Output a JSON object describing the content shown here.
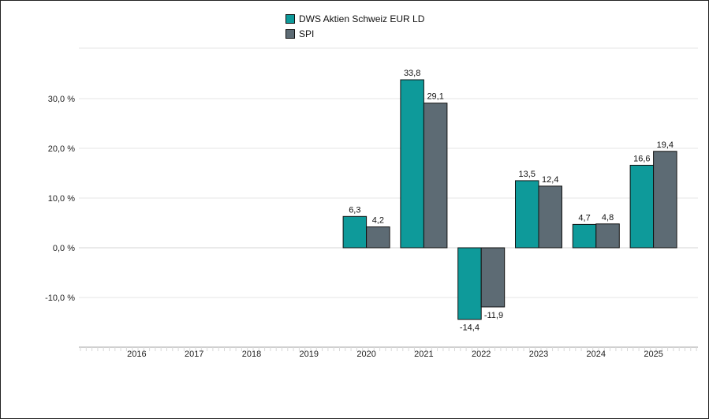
{
  "chart_data": {
    "type": "bar",
    "title": "",
    "xlabel": "",
    "ylabel": "",
    "categories": [
      "2016",
      "2017",
      "2018",
      "2019",
      "2020",
      "2021",
      "2022",
      "2023",
      "2024",
      "2025"
    ],
    "series": [
      {
        "name": "DWS Aktien Schweiz EUR LD",
        "color": "#0e9a9a",
        "values": [
          null,
          null,
          null,
          null,
          6.3,
          33.8,
          -14.4,
          13.5,
          4.7,
          16.6
        ],
        "labels": [
          "",
          "",
          "",
          "",
          "6,3",
          "33,8",
          "-14,4",
          "13,5",
          "4,7",
          "16,6"
        ]
      },
      {
        "name": "SPI",
        "color": "#5d6b74",
        "values": [
          null,
          null,
          null,
          null,
          4.2,
          29.1,
          -11.9,
          12.4,
          4.8,
          19.4
        ],
        "labels": [
          "",
          "",
          "",
          "",
          "4,2",
          "29,1",
          "-11,9",
          "12,4",
          "4,8",
          "19,4"
        ]
      }
    ],
    "y_ticks": [
      30,
      20,
      10,
      0,
      -10
    ],
    "y_tick_labels": [
      "30,0 %",
      "20,0 %",
      "10,0 %",
      "0,0 %",
      "-10,0 %"
    ],
    "ylim": [
      -20,
      40
    ],
    "grid": true,
    "legend_position": "top-center"
  }
}
